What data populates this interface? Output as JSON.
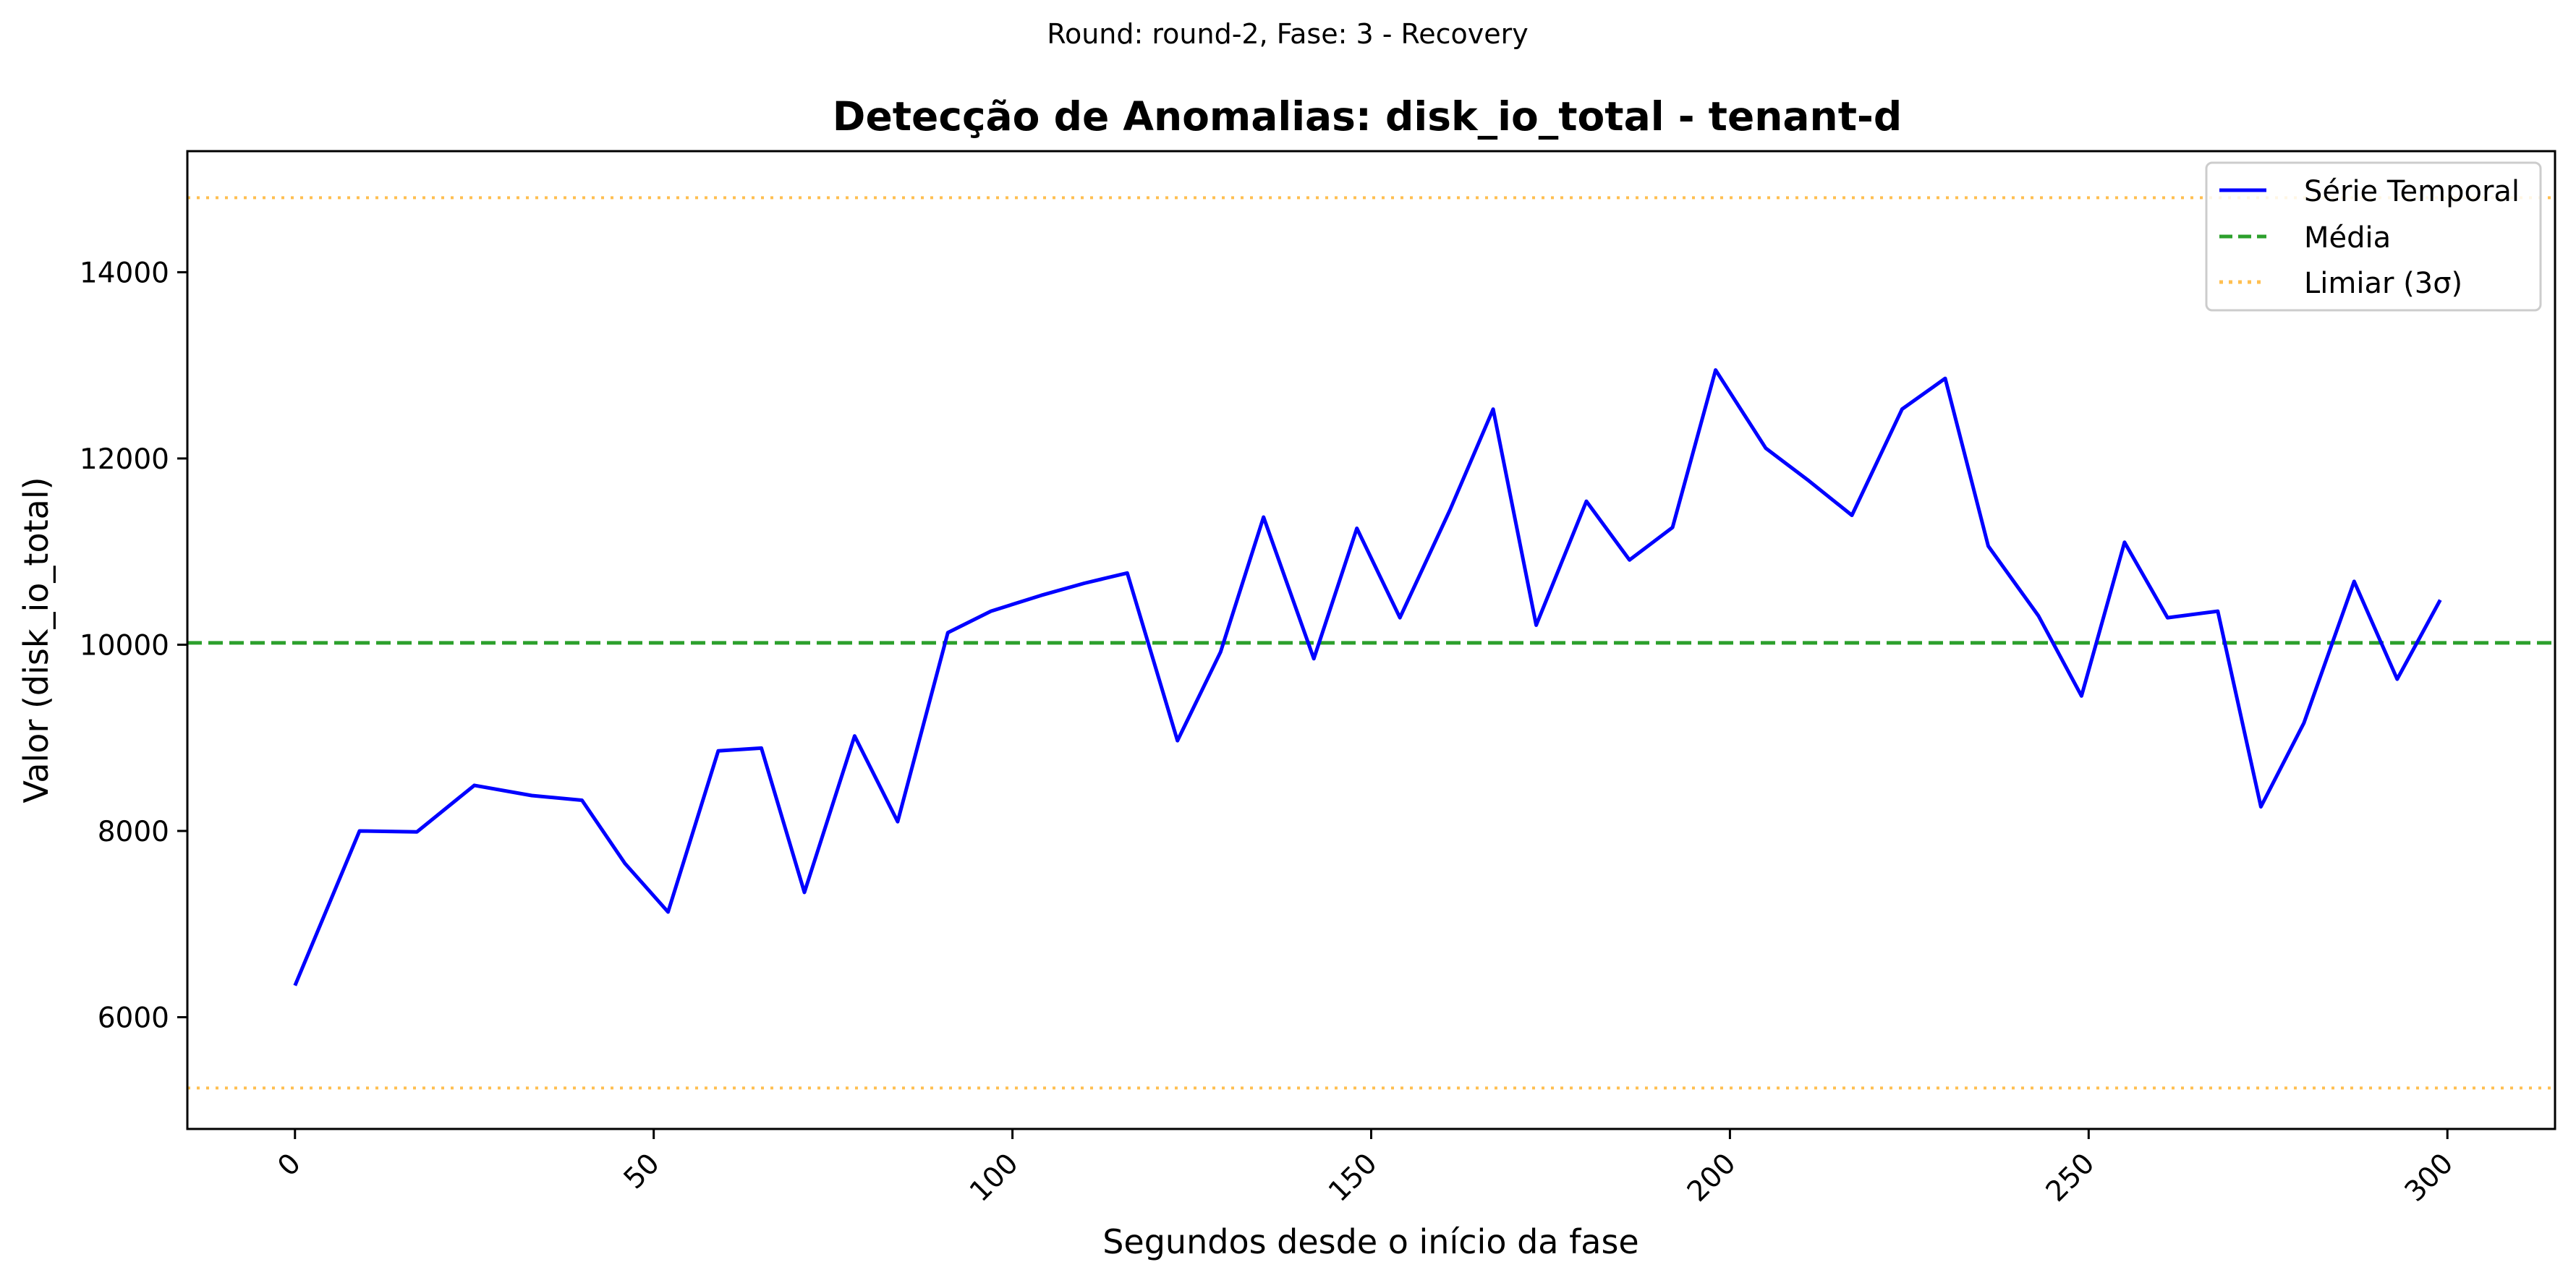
{
  "chart_data": {
    "type": "line",
    "suptitle": "Round: round-2, Fase: 3 - Recovery",
    "title": "Detecção de Anomalias: disk_io_total - tenant-d",
    "xlabel": "Segundos desde o início da fase",
    "ylabel": "Valor (disk_io_total)",
    "xlim": [
      -15,
      315
    ],
    "ylim": [
      4800,
      15300
    ],
    "xticks": [
      0,
      50,
      100,
      150,
      200,
      250,
      300
    ],
    "yticks": [
      6000,
      8000,
      10000,
      12000,
      14000
    ],
    "grid": false,
    "legend_position": "top-right",
    "series": [
      {
        "name": "Série Temporal",
        "color": "#0000ff",
        "style": "solid",
        "x": [
          0,
          9,
          17,
          25,
          33,
          40,
          46,
          52,
          59,
          65,
          71,
          78,
          84,
          91,
          97,
          104,
          110,
          116,
          123,
          129,
          135,
          142,
          148,
          154,
          161,
          167,
          173,
          180,
          186,
          192,
          198,
          205,
          211,
          217,
          224,
          230,
          236,
          243,
          249,
          255,
          261,
          268,
          274,
          280,
          287,
          293,
          299
        ],
        "y": [
          6340,
          8000,
          7990,
          8490,
          8380,
          8330,
          7650,
          7130,
          8860,
          8890,
          7340,
          9020,
          8100,
          10130,
          10360,
          10530,
          10660,
          10770,
          8970,
          9920,
          11370,
          9850,
          11250,
          10290,
          11450,
          12530,
          10210,
          11540,
          10910,
          11260,
          12950,
          12110,
          11760,
          11390,
          12530,
          12860,
          11060,
          10310,
          9450,
          11100,
          10290,
          10360,
          8260,
          9160,
          10680,
          9630,
          10480
        ]
      },
      {
        "name": "Média",
        "color": "#2ca02c",
        "style": "dashed",
        "value": 10020
      },
      {
        "name": "Limiar (3σ)",
        "color": "#ffbf50",
        "style": "dotted",
        "values": [
          14800,
          5240
        ]
      }
    ]
  }
}
